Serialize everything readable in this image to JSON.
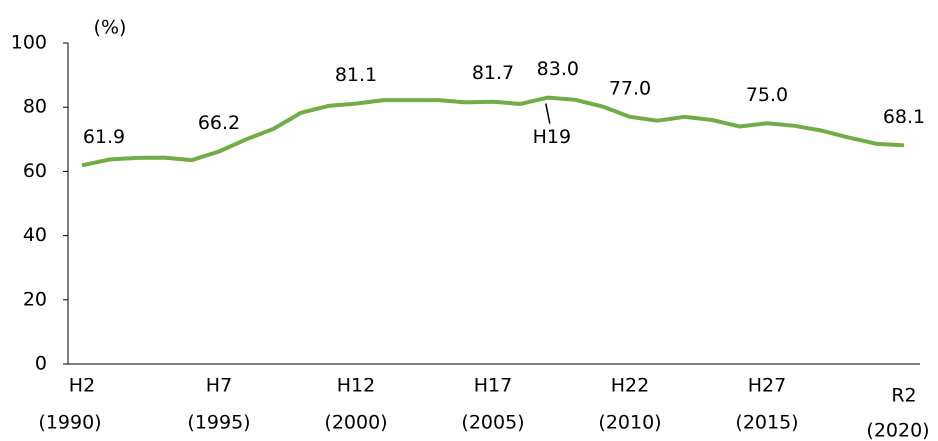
{
  "chart_data": {
    "type": "line",
    "y_unit": "(%)",
    "categories": [
      "H2",
      null,
      null,
      null,
      null,
      "H7",
      null,
      null,
      null,
      null,
      "H12",
      null,
      null,
      null,
      null,
      "H17",
      null,
      null,
      null,
      null,
      "H22",
      null,
      null,
      null,
      null,
      "H27",
      null,
      null,
      null,
      null,
      "R2"
    ],
    "category_years": [
      "(1990)",
      null,
      null,
      null,
      null,
      "(1995)",
      null,
      null,
      null,
      null,
      "(2000)",
      null,
      null,
      null,
      null,
      "(2005)",
      null,
      null,
      null,
      null,
      "(2010)",
      null,
      null,
      null,
      null,
      "(2015)",
      null,
      null,
      null,
      null,
      "(2020)"
    ],
    "series": [
      {
        "color": "#70ad47",
        "values": [
          61.9,
          63.7,
          64.2,
          64.3,
          63.5,
          66.2,
          70.0,
          73.3,
          78.3,
          80.4,
          81.1,
          82.2,
          82.2,
          82.2,
          81.5,
          81.7,
          81.0,
          83.0,
          82.3,
          80.2,
          77.0,
          75.8,
          77.0,
          76.0,
          74.0,
          75.0,
          74.2,
          72.7,
          70.5,
          68.6,
          68.1
        ],
        "value_labels": [
          "61.9",
          null,
          null,
          null,
          null,
          "66.2",
          null,
          null,
          null,
          null,
          "81.1",
          null,
          null,
          null,
          null,
          "81.7",
          null,
          "83.0",
          null,
          null,
          "77.0",
          null,
          null,
          null,
          null,
          "75.0",
          null,
          null,
          null,
          null,
          "68.1"
        ]
      }
    ],
    "annotations": [
      {
        "text": "H19",
        "index": 17
      }
    ],
    "ylim": [
      0,
      100
    ],
    "yticks": [
      0,
      20,
      40,
      60,
      80,
      100
    ]
  }
}
